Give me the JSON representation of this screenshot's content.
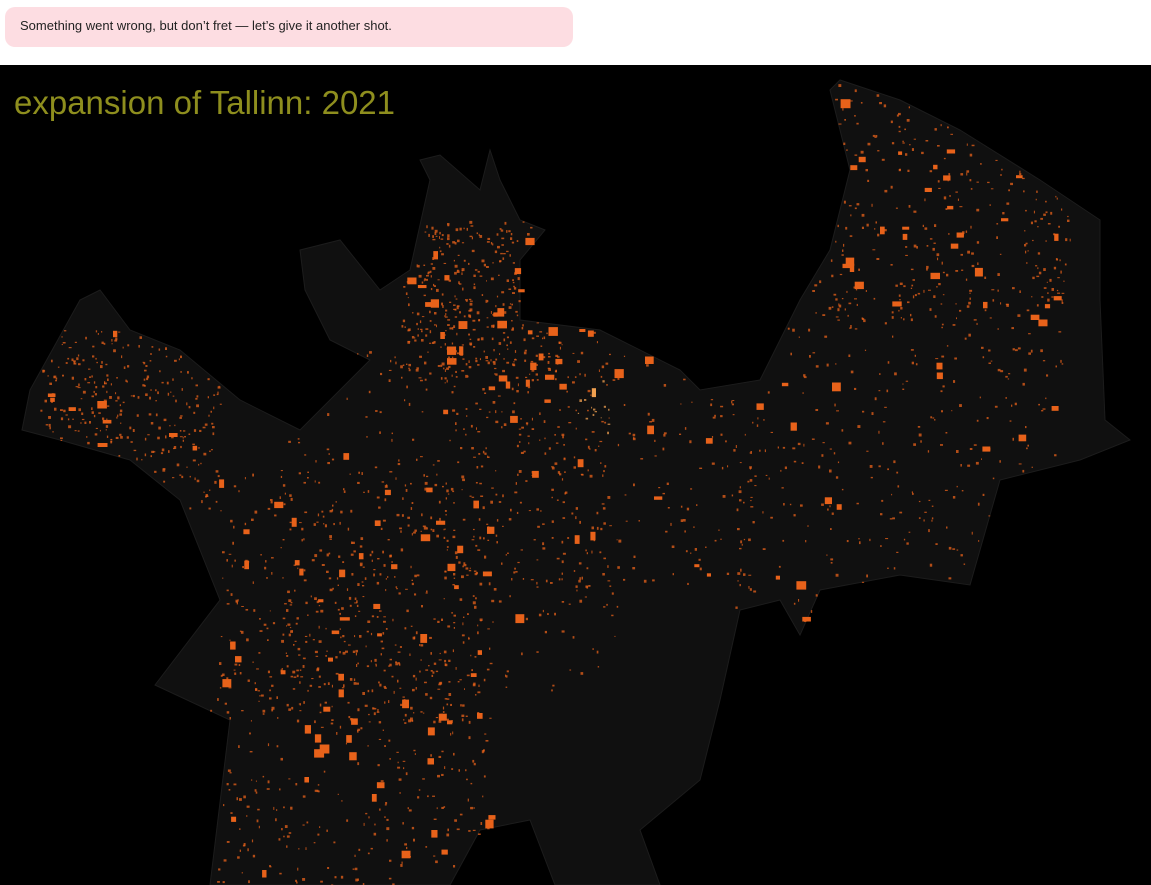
{
  "alert": {
    "message": "Something went wrong, but don’t fret — let’s give it another shot."
  },
  "map": {
    "title": "expansion of Tallinn: 2021",
    "colors": {
      "background": "#000000",
      "land": "#101010",
      "buildings": "#e8621a",
      "buildings_light": "#f0a050",
      "title": "#8e8e1e"
    }
  }
}
